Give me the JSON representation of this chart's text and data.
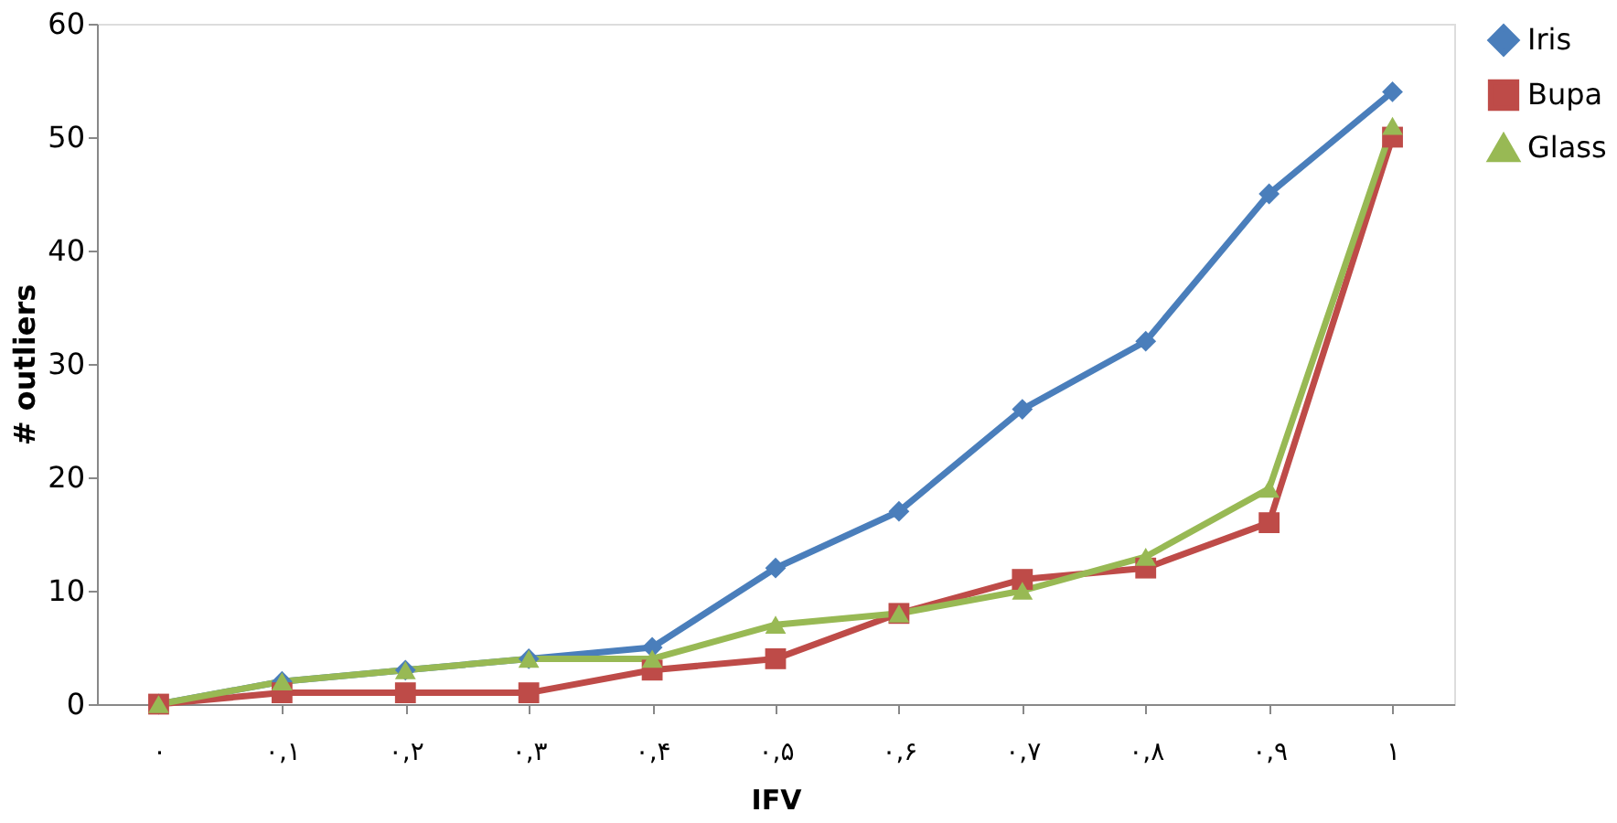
{
  "chart_data": {
    "type": "line",
    "xlabel": "IFV",
    "ylabel": "# outliers",
    "categories": [
      "۰",
      "۰,۱",
      "۰,۲",
      "۰,۳",
      "۰,۴",
      "۰,۵",
      "۰,۶",
      "۰,۷",
      "۰,۸",
      "۰,۹",
      "۱"
    ],
    "series": [
      {
        "name": "Iris",
        "color": "#4a7ebb",
        "marker": "diamond",
        "values": [
          0,
          2,
          3,
          4,
          5,
          12,
          17,
          26,
          32,
          45,
          54
        ]
      },
      {
        "name": "Bupa",
        "color": "#be4b48",
        "marker": "square",
        "values": [
          0,
          1,
          1,
          1,
          3,
          4,
          8,
          11,
          12,
          16,
          50
        ]
      },
      {
        "name": "Glass",
        "color": "#98b954",
        "marker": "triangle",
        "values": [
          0,
          2,
          3,
          4,
          4,
          7,
          8,
          10,
          13,
          19,
          51
        ]
      }
    ],
    "ylim": [
      0,
      60
    ],
    "yticks": [
      0,
      10,
      20,
      30,
      40,
      50,
      60
    ],
    "grid": false,
    "legend": "right",
    "line_style": "solid"
  }
}
